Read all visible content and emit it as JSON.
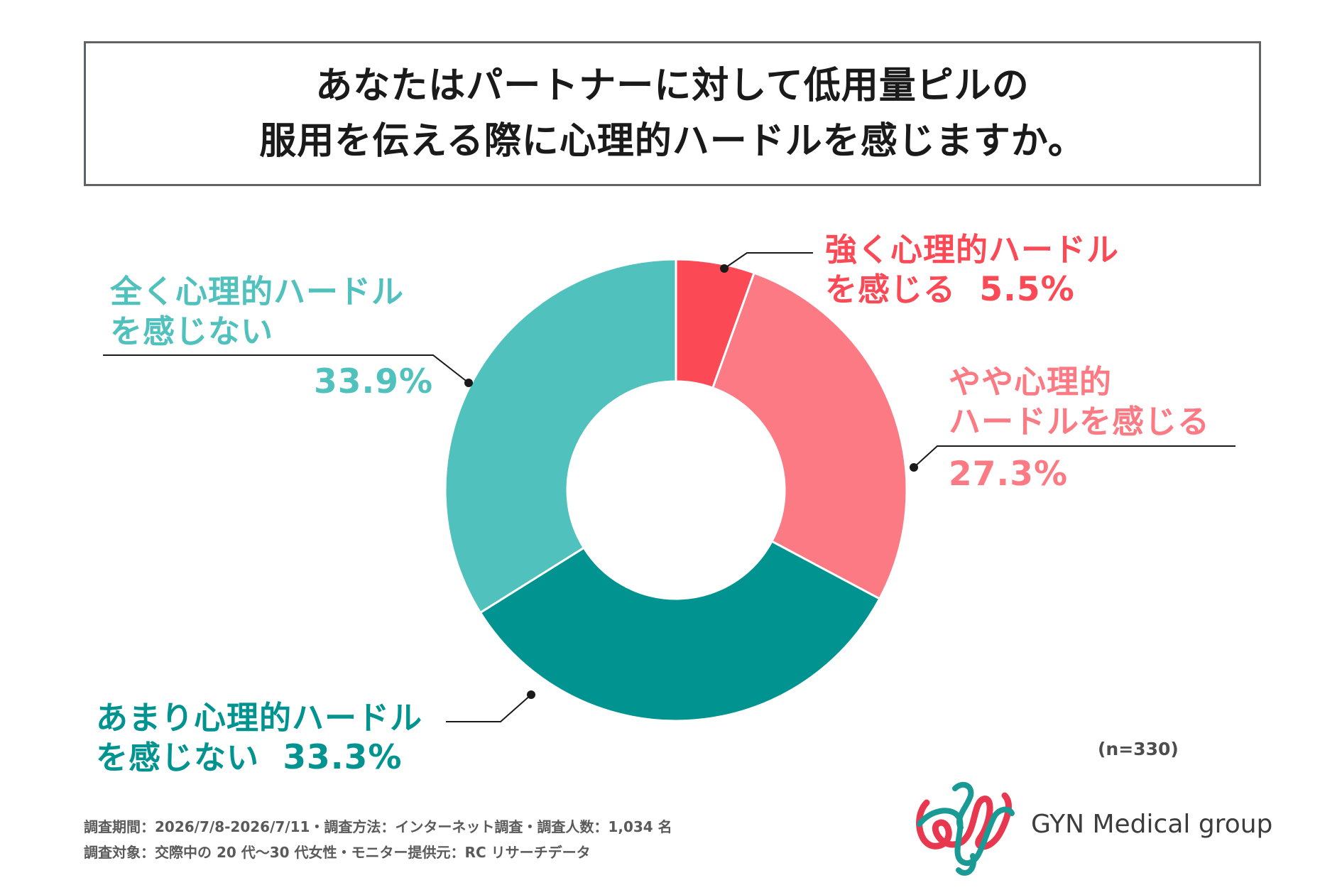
{
  "title": {
    "line1": "あなたはパートナーに対して低用量ピルの",
    "line2": "服用を伝える際に心理的ハードルを感じますか。"
  },
  "chart_data": {
    "type": "pie",
    "subtype": "donut",
    "title": "あなたはパートナーに対して低用量ピルの服用を伝える際に心理的ハードルを感じますか。",
    "series": [
      {
        "label_line1": "強く心理的ハードル",
        "label_line2": "を感じる",
        "value": 5.5,
        "display": "5.5%",
        "color": "#fb4a56"
      },
      {
        "label_line1": "やや心理的",
        "label_line2": "ハードルを感じる",
        "value": 27.3,
        "display": "27.3%",
        "color": "#fb7a83"
      },
      {
        "label_line1": "あまり心理的ハードル",
        "label_line2": "を感じない",
        "value": 33.3,
        "display": "33.3%",
        "color": "#009390"
      },
      {
        "label_line1": "全く心理的ハードル",
        "label_line2": "を感じない",
        "value": 33.9,
        "display": "33.9%",
        "color": "#50c1bd"
      }
    ],
    "sample_size": "(n=330)",
    "start_angle": "12 o'clock",
    "direction": "clockwise"
  },
  "footer": {
    "line1": "調査期間：2026/7/8-2026/7/11・調査方法：インターネット調査・調査人数：1,034 名",
    "line2": "調査対象：交際中の 20 代〜30 代女性・モニター提供元：RC リサーチデータ"
  },
  "brand": {
    "name": "GYN Medical group",
    "colors": {
      "red": "#e8384f",
      "teal": "#1a9a95"
    }
  }
}
